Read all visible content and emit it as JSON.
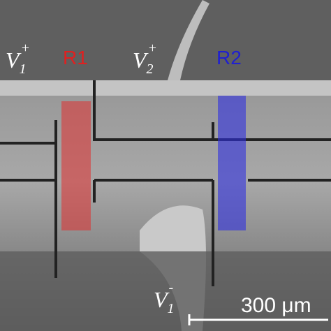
{
  "labels": [
    {
      "base": "V",
      "sub": "1",
      "sup": "+"
    },
    {
      "base": "V",
      "sub": "2",
      "sup": "+"
    },
    {
      "base": "V",
      "sub": "1",
      "sup": "-"
    }
  ],
  "regions": [
    "R1",
    "R2"
  ],
  "scale_bar": "300 μm"
}
